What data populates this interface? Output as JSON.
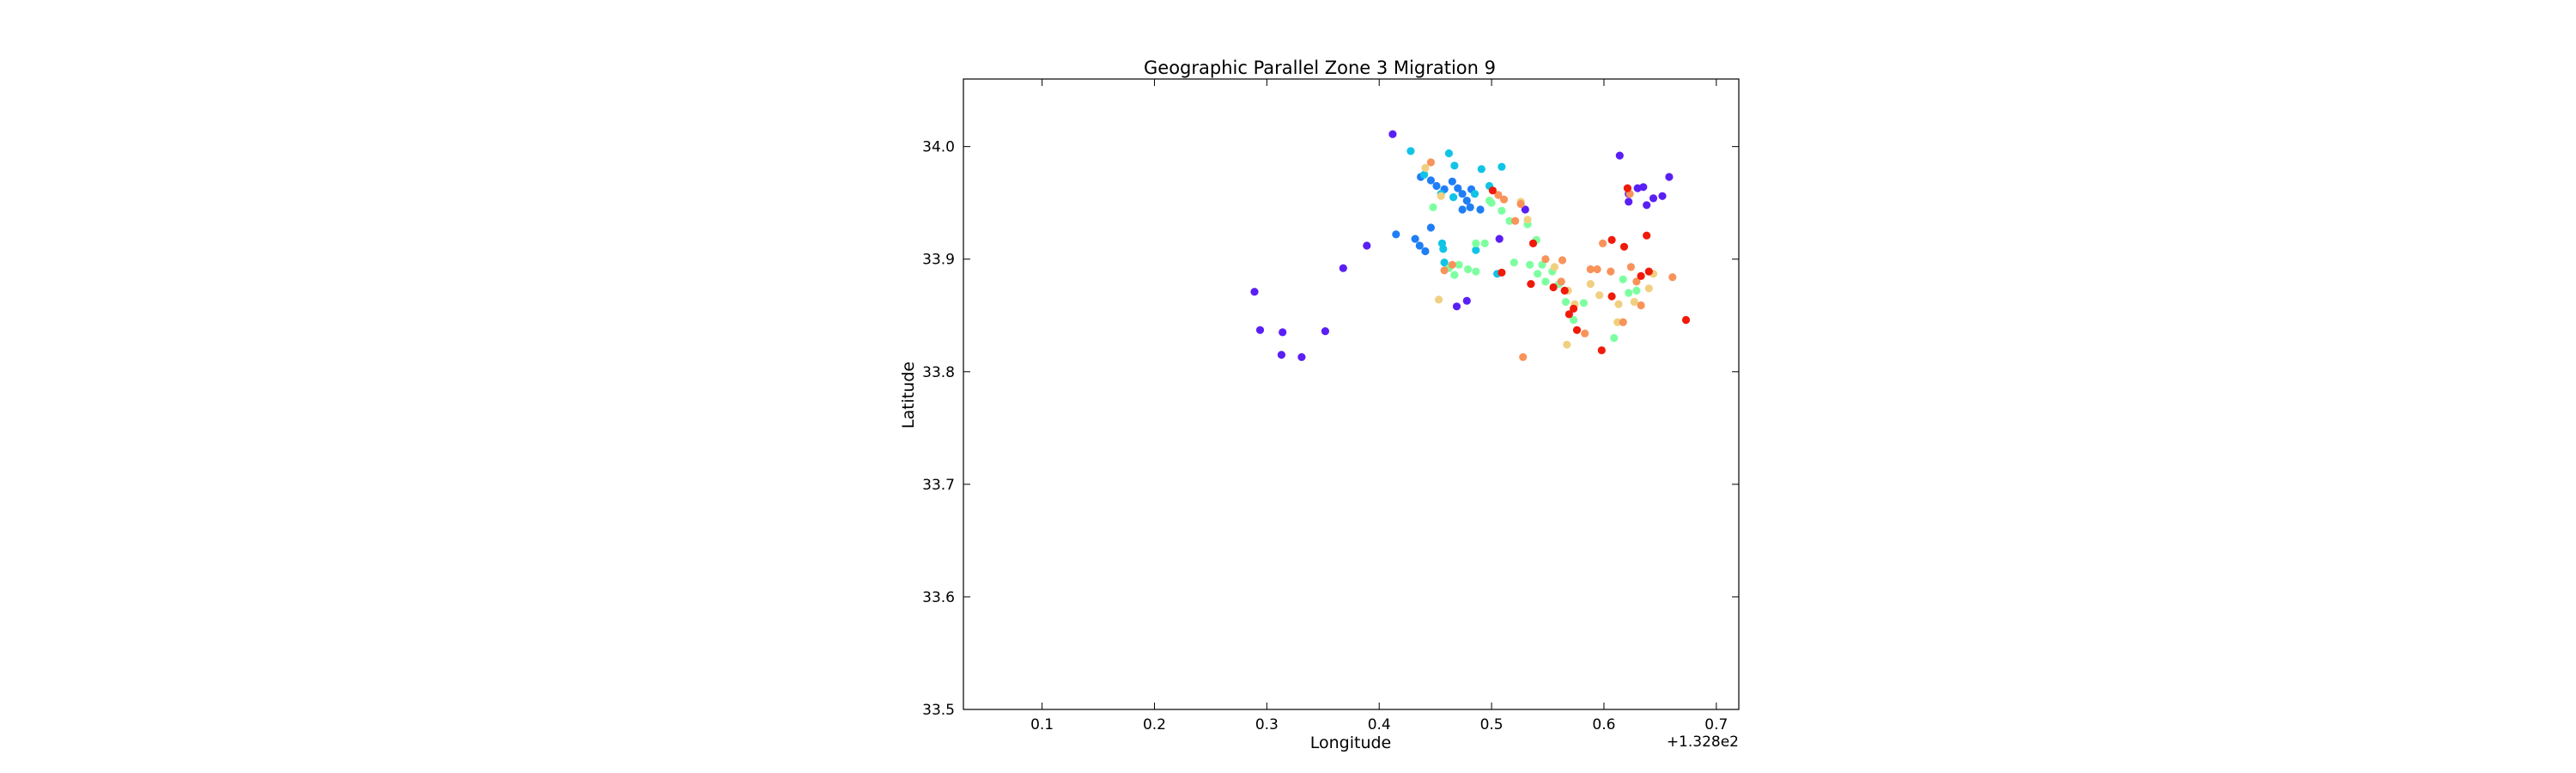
{
  "chart_data": {
    "type": "scatter",
    "title": "Geographic Parallel Zone 3 Migration 9",
    "xlabel": "Longitude",
    "ylabel": "Latitude",
    "x_offset_text": "+1.328e2",
    "xlim": [
      0.03,
      0.72
    ],
    "ylim": [
      33.5,
      34.06
    ],
    "x_ticks": [
      0.1,
      0.2,
      0.3,
      0.4,
      0.5,
      0.6,
      0.7
    ],
    "x_tick_labels": [
      "0.1",
      "0.2",
      "0.3",
      "0.4",
      "0.5",
      "0.6",
      "0.7"
    ],
    "y_ticks": [
      33.5,
      33.6,
      33.7,
      33.8,
      33.9,
      34.0
    ],
    "y_tick_labels": [
      "33.5",
      "33.6",
      "33.7",
      "33.8",
      "33.9",
      "34.0"
    ],
    "grid": false,
    "colormap": "rainbow",
    "colors": {
      "violet": "#5a1ff5",
      "blue": "#1f7ef5",
      "cyan": "#10c4e6",
      "green": "#7dffa0",
      "yellow": "#f0d080",
      "orange": "#f8935a",
      "red": "#f01a0a"
    },
    "points": [
      {
        "x": 0.289,
        "y": 33.871,
        "c": "violet"
      },
      {
        "x": 0.294,
        "y": 33.837,
        "c": "violet"
      },
      {
        "x": 0.314,
        "y": 33.835,
        "c": "violet"
      },
      {
        "x": 0.352,
        "y": 33.836,
        "c": "violet"
      },
      {
        "x": 0.313,
        "y": 33.815,
        "c": "violet"
      },
      {
        "x": 0.331,
        "y": 33.813,
        "c": "violet"
      },
      {
        "x": 0.368,
        "y": 33.892,
        "c": "violet"
      },
      {
        "x": 0.389,
        "y": 33.912,
        "c": "violet"
      },
      {
        "x": 0.412,
        "y": 34.011,
        "c": "violet"
      },
      {
        "x": 0.614,
        "y": 33.992,
        "c": "violet"
      },
      {
        "x": 0.622,
        "y": 33.958,
        "c": "violet"
      },
      {
        "x": 0.622,
        "y": 33.951,
        "c": "violet"
      },
      {
        "x": 0.63,
        "y": 33.963,
        "c": "violet"
      },
      {
        "x": 0.635,
        "y": 33.964,
        "c": "violet"
      },
      {
        "x": 0.638,
        "y": 33.948,
        "c": "violet"
      },
      {
        "x": 0.644,
        "y": 33.954,
        "c": "violet"
      },
      {
        "x": 0.652,
        "y": 33.956,
        "c": "violet"
      },
      {
        "x": 0.658,
        "y": 33.973,
        "c": "violet"
      },
      {
        "x": 0.53,
        "y": 33.944,
        "c": "violet"
      },
      {
        "x": 0.507,
        "y": 33.918,
        "c": "violet"
      },
      {
        "x": 0.469,
        "y": 33.858,
        "c": "violet"
      },
      {
        "x": 0.478,
        "y": 33.863,
        "c": "violet"
      },
      {
        "x": 0.415,
        "y": 33.922,
        "c": "blue"
      },
      {
        "x": 0.432,
        "y": 33.918,
        "c": "blue"
      },
      {
        "x": 0.436,
        "y": 33.912,
        "c": "blue"
      },
      {
        "x": 0.441,
        "y": 33.907,
        "c": "blue"
      },
      {
        "x": 0.446,
        "y": 33.928,
        "c": "blue"
      },
      {
        "x": 0.437,
        "y": 33.973,
        "c": "blue"
      },
      {
        "x": 0.446,
        "y": 33.97,
        "c": "blue"
      },
      {
        "x": 0.451,
        "y": 33.965,
        "c": "blue"
      },
      {
        "x": 0.458,
        "y": 33.962,
        "c": "blue"
      },
      {
        "x": 0.465,
        "y": 33.969,
        "c": "blue"
      },
      {
        "x": 0.47,
        "y": 33.963,
        "c": "blue"
      },
      {
        "x": 0.474,
        "y": 33.958,
        "c": "blue"
      },
      {
        "x": 0.478,
        "y": 33.952,
        "c": "blue"
      },
      {
        "x": 0.482,
        "y": 33.962,
        "c": "blue"
      },
      {
        "x": 0.474,
        "y": 33.944,
        "c": "blue"
      },
      {
        "x": 0.481,
        "y": 33.946,
        "c": "blue"
      },
      {
        "x": 0.49,
        "y": 33.944,
        "c": "blue"
      },
      {
        "x": 0.44,
        "y": 33.975,
        "c": "cyan"
      },
      {
        "x": 0.428,
        "y": 33.996,
        "c": "cyan"
      },
      {
        "x": 0.462,
        "y": 33.994,
        "c": "cyan"
      },
      {
        "x": 0.467,
        "y": 33.983,
        "c": "cyan"
      },
      {
        "x": 0.491,
        "y": 33.98,
        "c": "cyan"
      },
      {
        "x": 0.509,
        "y": 33.982,
        "c": "cyan"
      },
      {
        "x": 0.455,
        "y": 33.958,
        "c": "cyan"
      },
      {
        "x": 0.466,
        "y": 33.955,
        "c": "cyan"
      },
      {
        "x": 0.485,
        "y": 33.958,
        "c": "cyan"
      },
      {
        "x": 0.498,
        "y": 33.965,
        "c": "cyan"
      },
      {
        "x": 0.456,
        "y": 33.914,
        "c": "cyan"
      },
      {
        "x": 0.457,
        "y": 33.909,
        "c": "cyan"
      },
      {
        "x": 0.458,
        "y": 33.897,
        "c": "cyan"
      },
      {
        "x": 0.486,
        "y": 33.908,
        "c": "cyan"
      },
      {
        "x": 0.505,
        "y": 33.887,
        "c": "cyan"
      },
      {
        "x": 0.448,
        "y": 33.946,
        "c": "green"
      },
      {
        "x": 0.462,
        "y": 33.892,
        "c": "green"
      },
      {
        "x": 0.467,
        "y": 33.886,
        "c": "green"
      },
      {
        "x": 0.471,
        "y": 33.895,
        "c": "green"
      },
      {
        "x": 0.479,
        "y": 33.891,
        "c": "green"
      },
      {
        "x": 0.486,
        "y": 33.889,
        "c": "green"
      },
      {
        "x": 0.486,
        "y": 33.914,
        "c": "green"
      },
      {
        "x": 0.494,
        "y": 33.914,
        "c": "green"
      },
      {
        "x": 0.498,
        "y": 33.952,
        "c": "green"
      },
      {
        "x": 0.5,
        "y": 33.95,
        "c": "green"
      },
      {
        "x": 0.509,
        "y": 33.943,
        "c": "green"
      },
      {
        "x": 0.516,
        "y": 33.934,
        "c": "green"
      },
      {
        "x": 0.532,
        "y": 33.931,
        "c": "green"
      },
      {
        "x": 0.54,
        "y": 33.917,
        "c": "green"
      },
      {
        "x": 0.52,
        "y": 33.897,
        "c": "green"
      },
      {
        "x": 0.534,
        "y": 33.895,
        "c": "green"
      },
      {
        "x": 0.541,
        "y": 33.887,
        "c": "green"
      },
      {
        "x": 0.545,
        "y": 33.895,
        "c": "green"
      },
      {
        "x": 0.548,
        "y": 33.88,
        "c": "green"
      },
      {
        "x": 0.554,
        "y": 33.889,
        "c": "green"
      },
      {
        "x": 0.56,
        "y": 33.878,
        "c": "green"
      },
      {
        "x": 0.566,
        "y": 33.862,
        "c": "green"
      },
      {
        "x": 0.573,
        "y": 33.846,
        "c": "green"
      },
      {
        "x": 0.582,
        "y": 33.861,
        "c": "green"
      },
      {
        "x": 0.609,
        "y": 33.83,
        "c": "green"
      },
      {
        "x": 0.617,
        "y": 33.882,
        "c": "green"
      },
      {
        "x": 0.622,
        "y": 33.87,
        "c": "green"
      },
      {
        "x": 0.629,
        "y": 33.872,
        "c": "green"
      },
      {
        "x": 0.453,
        "y": 33.864,
        "c": "yellow"
      },
      {
        "x": 0.441,
        "y": 33.981,
        "c": "yellow"
      },
      {
        "x": 0.455,
        "y": 33.956,
        "c": "yellow"
      },
      {
        "x": 0.526,
        "y": 33.951,
        "c": "yellow"
      },
      {
        "x": 0.532,
        "y": 33.935,
        "c": "yellow"
      },
      {
        "x": 0.556,
        "y": 33.893,
        "c": "yellow"
      },
      {
        "x": 0.568,
        "y": 33.872,
        "c": "yellow"
      },
      {
        "x": 0.574,
        "y": 33.86,
        "c": "yellow"
      },
      {
        "x": 0.588,
        "y": 33.878,
        "c": "yellow"
      },
      {
        "x": 0.596,
        "y": 33.868,
        "c": "yellow"
      },
      {
        "x": 0.613,
        "y": 33.86,
        "c": "yellow"
      },
      {
        "x": 0.627,
        "y": 33.862,
        "c": "yellow"
      },
      {
        "x": 0.64,
        "y": 33.874,
        "c": "yellow"
      },
      {
        "x": 0.644,
        "y": 33.887,
        "c": "yellow"
      },
      {
        "x": 0.612,
        "y": 33.844,
        "c": "yellow"
      },
      {
        "x": 0.567,
        "y": 33.824,
        "c": "yellow"
      },
      {
        "x": 0.446,
        "y": 33.986,
        "c": "orange"
      },
      {
        "x": 0.465,
        "y": 33.895,
        "c": "orange"
      },
      {
        "x": 0.458,
        "y": 33.89,
        "c": "orange"
      },
      {
        "x": 0.506,
        "y": 33.957,
        "c": "orange"
      },
      {
        "x": 0.511,
        "y": 33.953,
        "c": "orange"
      },
      {
        "x": 0.521,
        "y": 33.934,
        "c": "orange"
      },
      {
        "x": 0.526,
        "y": 33.949,
        "c": "orange"
      },
      {
        "x": 0.528,
        "y": 33.813,
        "c": "orange"
      },
      {
        "x": 0.548,
        "y": 33.9,
        "c": "orange"
      },
      {
        "x": 0.563,
        "y": 33.899,
        "c": "orange"
      },
      {
        "x": 0.588,
        "y": 33.891,
        "c": "orange"
      },
      {
        "x": 0.594,
        "y": 33.891,
        "c": "orange"
      },
      {
        "x": 0.599,
        "y": 33.914,
        "c": "orange"
      },
      {
        "x": 0.606,
        "y": 33.889,
        "c": "orange"
      },
      {
        "x": 0.617,
        "y": 33.844,
        "c": "orange"
      },
      {
        "x": 0.623,
        "y": 33.958,
        "c": "orange"
      },
      {
        "x": 0.624,
        "y": 33.893,
        "c": "orange"
      },
      {
        "x": 0.629,
        "y": 33.88,
        "c": "orange"
      },
      {
        "x": 0.633,
        "y": 33.859,
        "c": "orange"
      },
      {
        "x": 0.661,
        "y": 33.884,
        "c": "orange"
      },
      {
        "x": 0.583,
        "y": 33.834,
        "c": "orange"
      },
      {
        "x": 0.562,
        "y": 33.88,
        "c": "orange"
      },
      {
        "x": 0.501,
        "y": 33.961,
        "c": "red"
      },
      {
        "x": 0.509,
        "y": 33.888,
        "c": "red"
      },
      {
        "x": 0.537,
        "y": 33.914,
        "c": "red"
      },
      {
        "x": 0.535,
        "y": 33.878,
        "c": "red"
      },
      {
        "x": 0.555,
        "y": 33.875,
        "c": "red"
      },
      {
        "x": 0.565,
        "y": 33.872,
        "c": "red"
      },
      {
        "x": 0.569,
        "y": 33.851,
        "c": "red"
      },
      {
        "x": 0.573,
        "y": 33.856,
        "c": "red"
      },
      {
        "x": 0.576,
        "y": 33.837,
        "c": "red"
      },
      {
        "x": 0.598,
        "y": 33.819,
        "c": "red"
      },
      {
        "x": 0.607,
        "y": 33.917,
        "c": "red"
      },
      {
        "x": 0.607,
        "y": 33.867,
        "c": "red"
      },
      {
        "x": 0.618,
        "y": 33.911,
        "c": "red"
      },
      {
        "x": 0.621,
        "y": 33.963,
        "c": "red"
      },
      {
        "x": 0.633,
        "y": 33.885,
        "c": "red"
      },
      {
        "x": 0.638,
        "y": 33.921,
        "c": "red"
      },
      {
        "x": 0.64,
        "y": 33.889,
        "c": "red"
      },
      {
        "x": 0.673,
        "y": 33.846,
        "c": "red"
      }
    ]
  }
}
